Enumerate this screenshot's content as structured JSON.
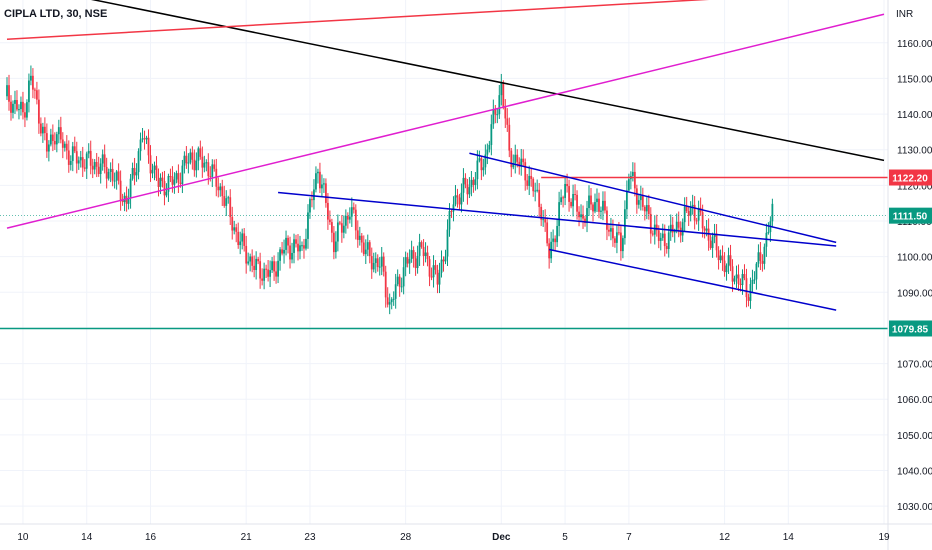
{
  "chart_data": {
    "type": "candlestick",
    "title": "CIPLA LTD, 30, NSE",
    "currency": "INR",
    "y_range": [
      1025,
      1172
    ],
    "y_ticks": [
      1160,
      1150,
      1140,
      1130,
      1120,
      1110,
      1100,
      1090,
      1080,
      1070,
      1060,
      1050,
      1040,
      1030
    ],
    "y_tick_labels": [
      "1160.00",
      "1150.00",
      "1140.00",
      "1130.00",
      "1120.00",
      "1110.00",
      "1100.00",
      "1090.00",
      "1080.00",
      "1070.00",
      "1060.00",
      "1050.00",
      "1040.00",
      "1030.00"
    ],
    "x_ticks": [
      {
        "label": "10",
        "bar": 2
      },
      {
        "label": "14",
        "bar": 10
      },
      {
        "label": "16",
        "bar": 18
      },
      {
        "label": "21",
        "bar": 30
      },
      {
        "label": "23",
        "bar": 38
      },
      {
        "label": "28",
        "bar": 50
      },
      {
        "label": "Dec",
        "bar": 62
      },
      {
        "label": "5",
        "bar": 70
      },
      {
        "label": "7",
        "bar": 78
      },
      {
        "label": "12",
        "bar": 90
      },
      {
        "label": "14",
        "bar": 98
      },
      {
        "label": "19",
        "bar": 110
      }
    ],
    "bar_range": [
      0,
      110
    ],
    "candles_close_path": [
      [
        0,
        1145
      ],
      [
        2,
        1140
      ],
      [
        3,
        1150
      ],
      [
        5,
        1130
      ],
      [
        6,
        1135
      ],
      [
        8,
        1128
      ],
      [
        11,
        1126
      ],
      [
        13,
        1124
      ],
      [
        15,
        1115
      ],
      [
        17,
        1134
      ],
      [
        19,
        1120
      ],
      [
        21,
        1121
      ],
      [
        23,
        1128
      ],
      [
        25,
        1126
      ],
      [
        27,
        1118
      ],
      [
        29,
        1105
      ],
      [
        31,
        1097
      ],
      [
        33,
        1095
      ],
      [
        35,
        1103
      ],
      [
        37,
        1102
      ],
      [
        39,
        1125
      ],
      [
        41,
        1104
      ],
      [
        43,
        1113
      ],
      [
        45,
        1101
      ],
      [
        47,
        1097
      ],
      [
        48,
        1086
      ],
      [
        50,
        1098
      ],
      [
        52,
        1102
      ],
      [
        54,
        1093
      ],
      [
        55,
        1103
      ],
      [
        56,
        1116
      ],
      [
        58,
        1120
      ],
      [
        60,
        1128
      ],
      [
        62,
        1148
      ],
      [
        63,
        1129
      ],
      [
        65,
        1124
      ],
      [
        67,
        1114
      ],
      [
        68,
        1100
      ],
      [
        70,
        1120
      ],
      [
        72,
        1111
      ],
      [
        74,
        1116
      ],
      [
        76,
        1106
      ],
      [
        77,
        1103
      ],
      [
        78,
        1123
      ],
      [
        80,
        1113
      ],
      [
        82,
        1104
      ],
      [
        84,
        1108
      ],
      [
        86,
        1114
      ],
      [
        88,
        1106
      ],
      [
        90,
        1098
      ],
      [
        92,
        1093
      ],
      [
        93,
        1090
      ],
      [
        95,
        1103
      ],
      [
        96,
        1112
      ]
    ],
    "horizontal_levels": [
      {
        "value": 1122.2,
        "label": "1122.20",
        "color": "#f23645",
        "from_bar": 67
      },
      {
        "value": 1111.5,
        "label": "1111.50",
        "color": "#089981",
        "from_bar": 0
      },
      {
        "value": 1079.85,
        "label": "1079.85",
        "color": "#089981",
        "from_bar": 0
      }
    ],
    "trend_lines": [
      {
        "color": "#000000",
        "points": [
          [
            0,
            1177
          ],
          [
            110,
            1127
          ]
        ]
      },
      {
        "color": "#f23645",
        "points": [
          [
            0,
            1161
          ],
          [
            110,
            1175
          ]
        ]
      },
      {
        "color": "#e01ecf",
        "points": [
          [
            0,
            1108
          ],
          [
            110,
            1168
          ]
        ]
      },
      {
        "color": "#0000cc",
        "points": [
          [
            34,
            1118
          ],
          [
            104,
            1103
          ]
        ]
      },
      {
        "color": "#0000cc",
        "points": [
          [
            58,
            1129
          ],
          [
            104,
            1104
          ]
        ]
      },
      {
        "color": "#0000cc",
        "points": [
          [
            68,
            1102
          ],
          [
            104,
            1085
          ]
        ]
      }
    ],
    "colors": {
      "up": "#089981",
      "down": "#f23645",
      "grid": "#f0f3fa",
      "axis": "#b2b5be"
    }
  }
}
